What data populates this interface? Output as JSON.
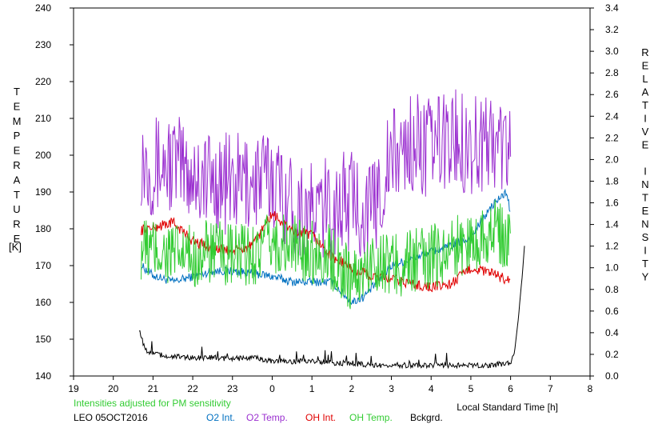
{
  "chart_data": {
    "type": "line",
    "title": "",
    "xlabel": "Local Standard Time [h]",
    "ylabel_left": "TEMPERATURE",
    "ylabel_left_unit": "[K]",
    "ylabel_right": "RELATIVE INTENSITY",
    "note": "Intensities adjusted for PM sensitivity",
    "station_date": "LEO 05OCT2016",
    "xlim": [
      19,
      32
    ],
    "x_tick_values": [
      19,
      20,
      21,
      22,
      23,
      24,
      25,
      26,
      27,
      28,
      29,
      30,
      31,
      32
    ],
    "x_tick_labels": [
      "19",
      "20",
      "21",
      "22",
      "23",
      "0",
      "1",
      "2",
      "3",
      "4",
      "5",
      "6",
      "7",
      "8"
    ],
    "ylim_left": [
      140,
      240
    ],
    "y_left_ticks": [
      140,
      150,
      160,
      170,
      180,
      190,
      200,
      210,
      220,
      230,
      240
    ],
    "ylim_right": [
      0.0,
      3.4
    ],
    "y_right_ticks": [
      "0.0",
      "0.2",
      "0.4",
      "0.6",
      "0.8",
      "1.0",
      "1.2",
      "1.4",
      "1.6",
      "1.8",
      "2.0",
      "2.2",
      "2.4",
      "2.6",
      "2.8",
      "3.0",
      "3.2",
      "3.4"
    ],
    "grid": false,
    "legend_position": "bottom",
    "series": [
      {
        "name": "O2 Int.",
        "axis": "right",
        "color": "#0070c0",
        "x": [
          20.7,
          21.0,
          21.5,
          22.0,
          22.5,
          23.0,
          23.5,
          24.0,
          24.5,
          25.0,
          25.5,
          26.0,
          26.3,
          26.6,
          27.0,
          27.5,
          28.0,
          28.5,
          29.0,
          29.3,
          29.6,
          29.9,
          30.0
        ],
        "y": [
          1.02,
          0.93,
          0.87,
          0.92,
          0.97,
          0.97,
          0.95,
          0.92,
          0.87,
          0.87,
          0.87,
          0.68,
          0.73,
          0.85,
          1.02,
          1.08,
          1.15,
          1.2,
          1.28,
          1.45,
          1.6,
          1.7,
          1.5
        ]
      },
      {
        "name": "O2 Temp.",
        "axis": "left",
        "color": "#9b30d0",
        "x": [
          20.7,
          21.0,
          21.5,
          22.0,
          22.5,
          23.0,
          23.5,
          24.0,
          24.5,
          25.0,
          25.5,
          26.0,
          26.5,
          27.0,
          27.5,
          28.0,
          28.5,
          29.0,
          29.5,
          30.0
        ],
        "y": [
          200,
          197,
          198,
          195,
          193,
          192,
          193,
          194,
          187,
          184,
          186,
          188,
          184,
          199,
          203,
          202,
          205,
          203,
          204,
          202
        ]
      },
      {
        "name": "OH Int.",
        "axis": "right",
        "color": "#e00000",
        "x": [
          20.7,
          21.0,
          21.5,
          22.0,
          22.5,
          23.0,
          23.5,
          24.0,
          24.3,
          24.6,
          25.0,
          25.5,
          26.0,
          26.5,
          27.0,
          27.5,
          28.0,
          28.5,
          29.0,
          29.5,
          30.0
        ],
        "y": [
          1.35,
          1.37,
          1.42,
          1.25,
          1.18,
          1.15,
          1.2,
          1.5,
          1.4,
          1.33,
          1.3,
          1.1,
          1.0,
          0.92,
          0.9,
          0.85,
          0.82,
          0.85,
          1.0,
          0.95,
          0.88
        ]
      },
      {
        "name": "OH Temp.",
        "axis": "left",
        "color": "#33cc33",
        "x": [
          20.7,
          21.0,
          21.5,
          22.0,
          22.5,
          23.0,
          23.5,
          24.0,
          24.5,
          25.0,
          25.5,
          26.0,
          26.3,
          26.6,
          27.0,
          27.5,
          28.0,
          28.5,
          29.0,
          29.5,
          30.0
        ],
        "y": [
          175,
          174,
          173,
          172,
          174,
          172,
          173,
          176,
          175,
          174,
          172,
          166,
          168,
          172,
          170,
          171,
          172,
          175,
          176,
          180,
          176
        ]
      },
      {
        "name": "Bckgrd.",
        "axis": "right",
        "color": "#000000",
        "x": [
          20.65,
          20.8,
          21.0,
          21.5,
          22.0,
          22.5,
          23.0,
          23.5,
          24.0,
          24.5,
          25.0,
          25.5,
          26.0,
          26.5,
          27.0,
          27.5,
          28.0,
          28.5,
          29.0,
          29.5,
          30.0,
          30.1,
          30.2,
          30.3,
          30.35
        ],
        "y": [
          0.44,
          0.24,
          0.2,
          0.18,
          0.17,
          0.17,
          0.16,
          0.17,
          0.14,
          0.13,
          0.14,
          0.12,
          0.12,
          0.1,
          0.1,
          0.1,
          0.1,
          0.1,
          0.1,
          0.1,
          0.12,
          0.22,
          0.55,
          0.95,
          1.2
        ]
      }
    ]
  }
}
